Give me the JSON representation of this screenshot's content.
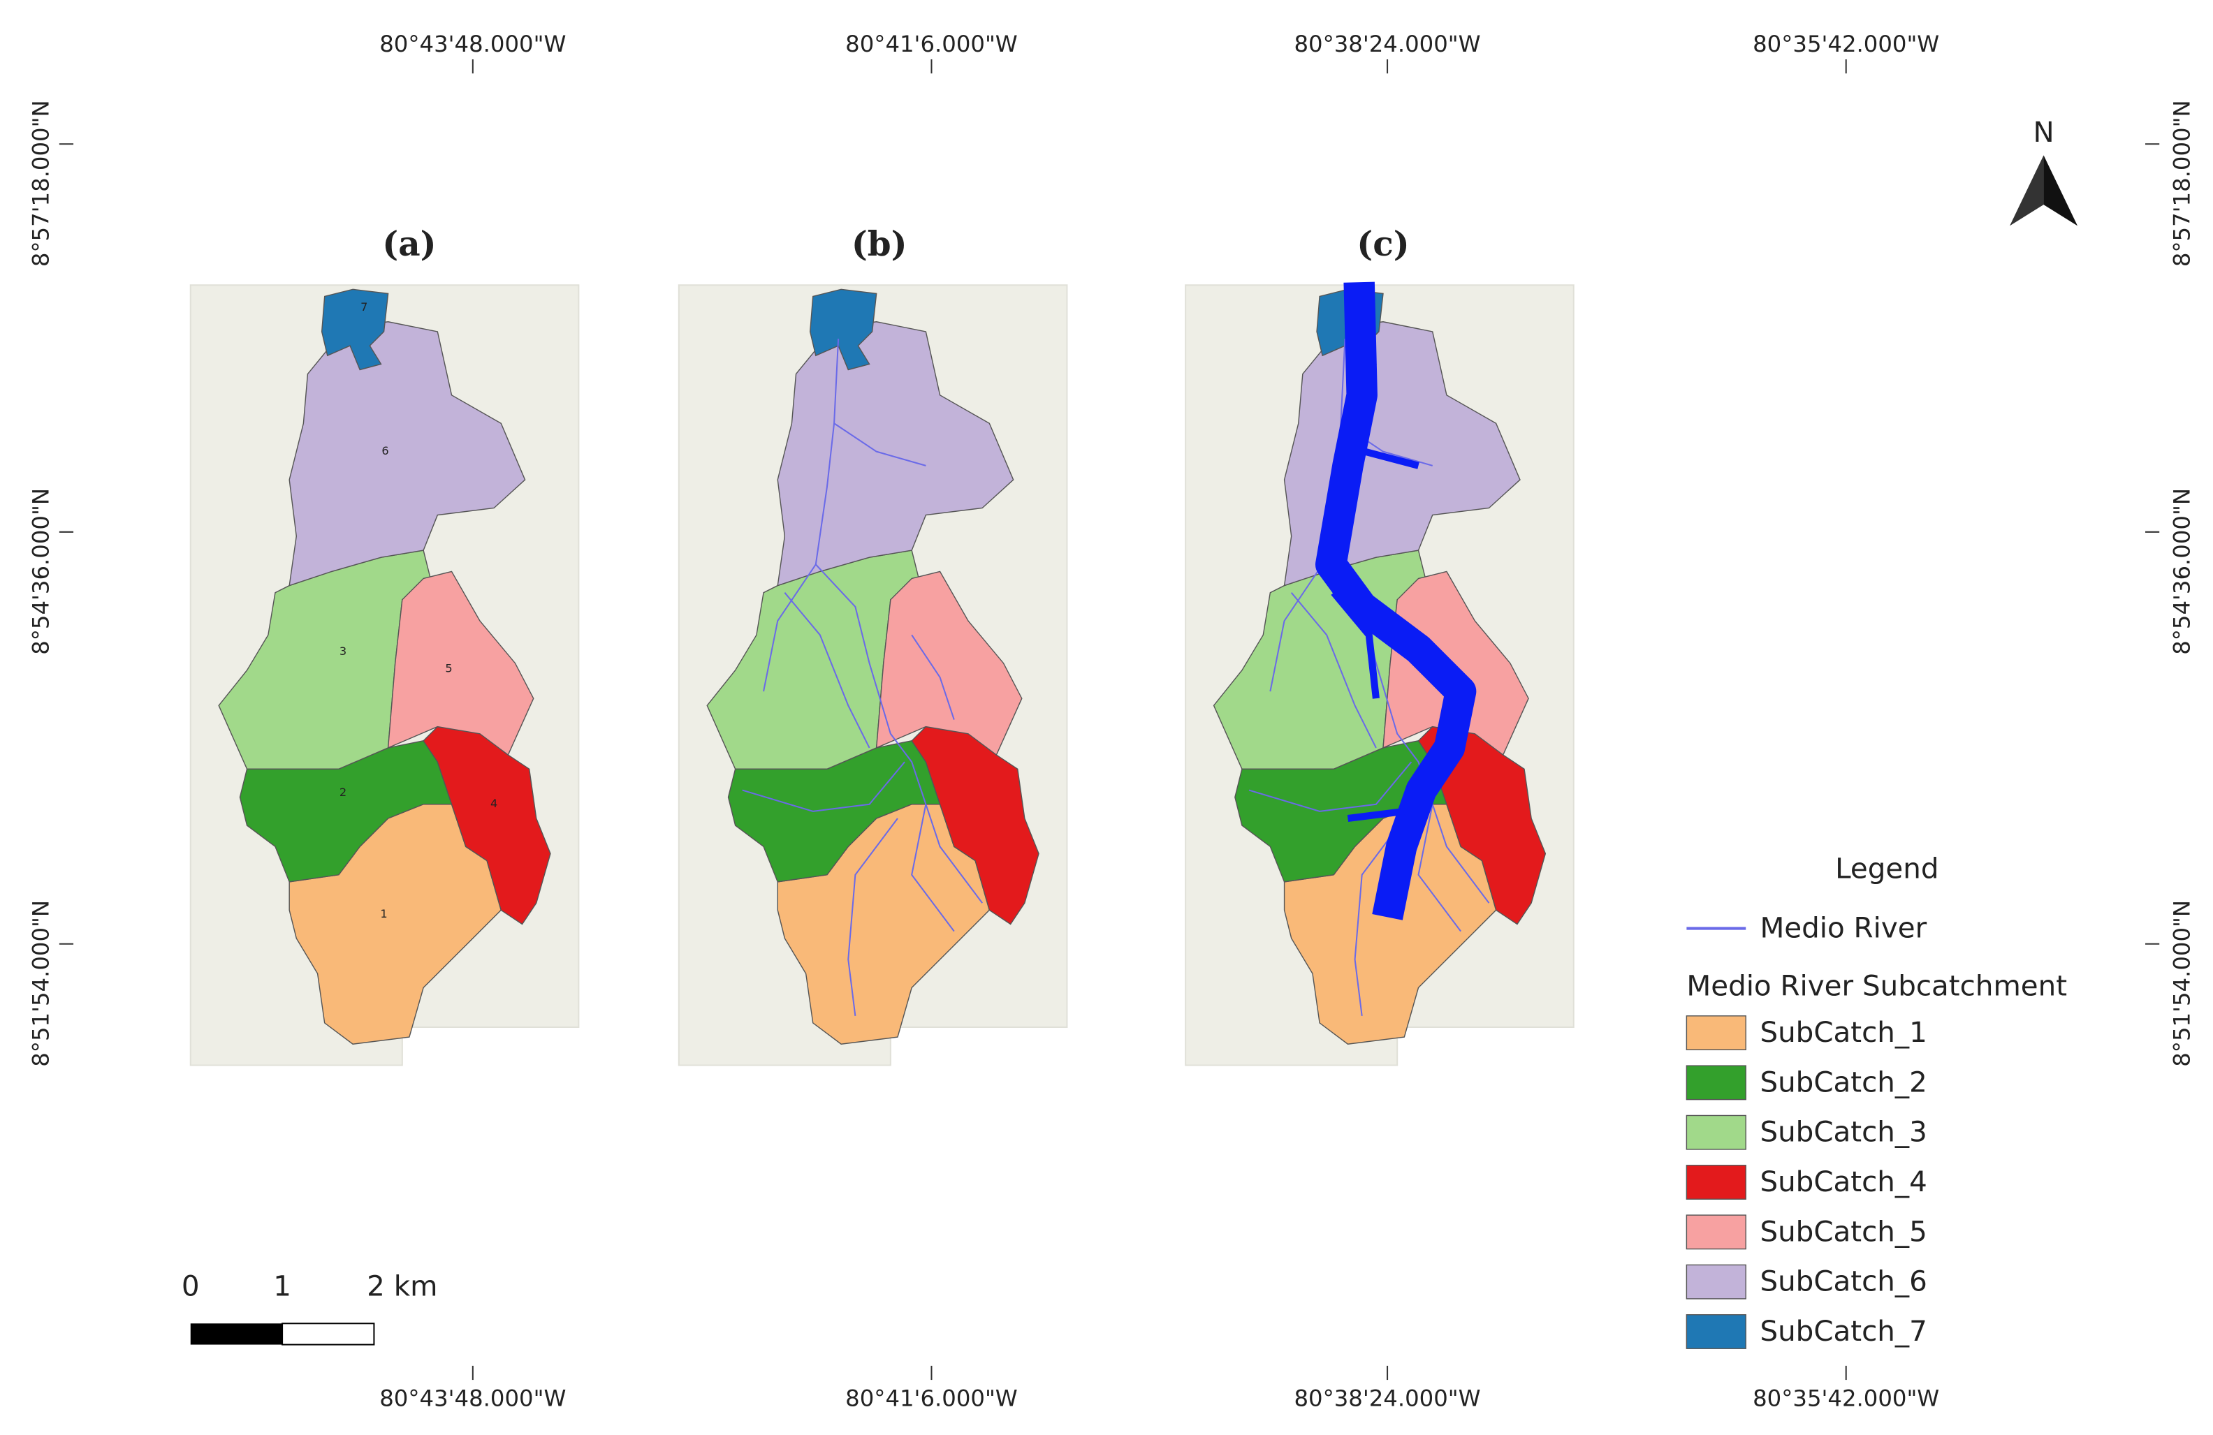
{
  "map": {
    "top_labels": [
      "80°43'48.000\"W",
      "80°41'6.000\"W",
      "80°38'24.000\"W",
      "80°35'42.000\"W"
    ],
    "bottom_labels": [
      "80°43'48.000\"W",
      "80°41'6.000\"W",
      "80°38'24.000\"W",
      "80°35'42.000\"W"
    ],
    "left_labels": [
      "8°57'18.000\"N",
      "8°54'36.000\"N",
      "8°51'54.000\"N"
    ],
    "right_labels": [
      "8°57'18.000\"N",
      "8°54'36.000\"N",
      "8°51'54.000\"N"
    ],
    "panels": [
      "(a)",
      "(b)",
      "(c)"
    ],
    "panel_a_numbers": [
      "1",
      "2",
      "3",
      "4",
      "5",
      "6",
      "7"
    ],
    "north": "N",
    "scale": [
      "0",
      "1",
      "2 km"
    ],
    "legend": {
      "title": "Legend",
      "river": {
        "label": "Medio River",
        "color": "#6a6ae8"
      },
      "group": "Medio River Subcatchment",
      "items": [
        {
          "label": "SubCatch_1",
          "color": "#f9b978"
        },
        {
          "label": "SubCatch_2",
          "color": "#33a02c"
        },
        {
          "label": "SubCatch_3",
          "color": "#a1d98a"
        },
        {
          "label": "SubCatch_4",
          "color": "#e31a1c"
        },
        {
          "label": "SubCatch_5",
          "color": "#f7a1a1"
        },
        {
          "label": "SubCatch_6",
          "color": "#c2b3d9"
        },
        {
          "label": "SubCatch_7",
          "color": "#1f78b4"
        }
      ]
    }
  }
}
